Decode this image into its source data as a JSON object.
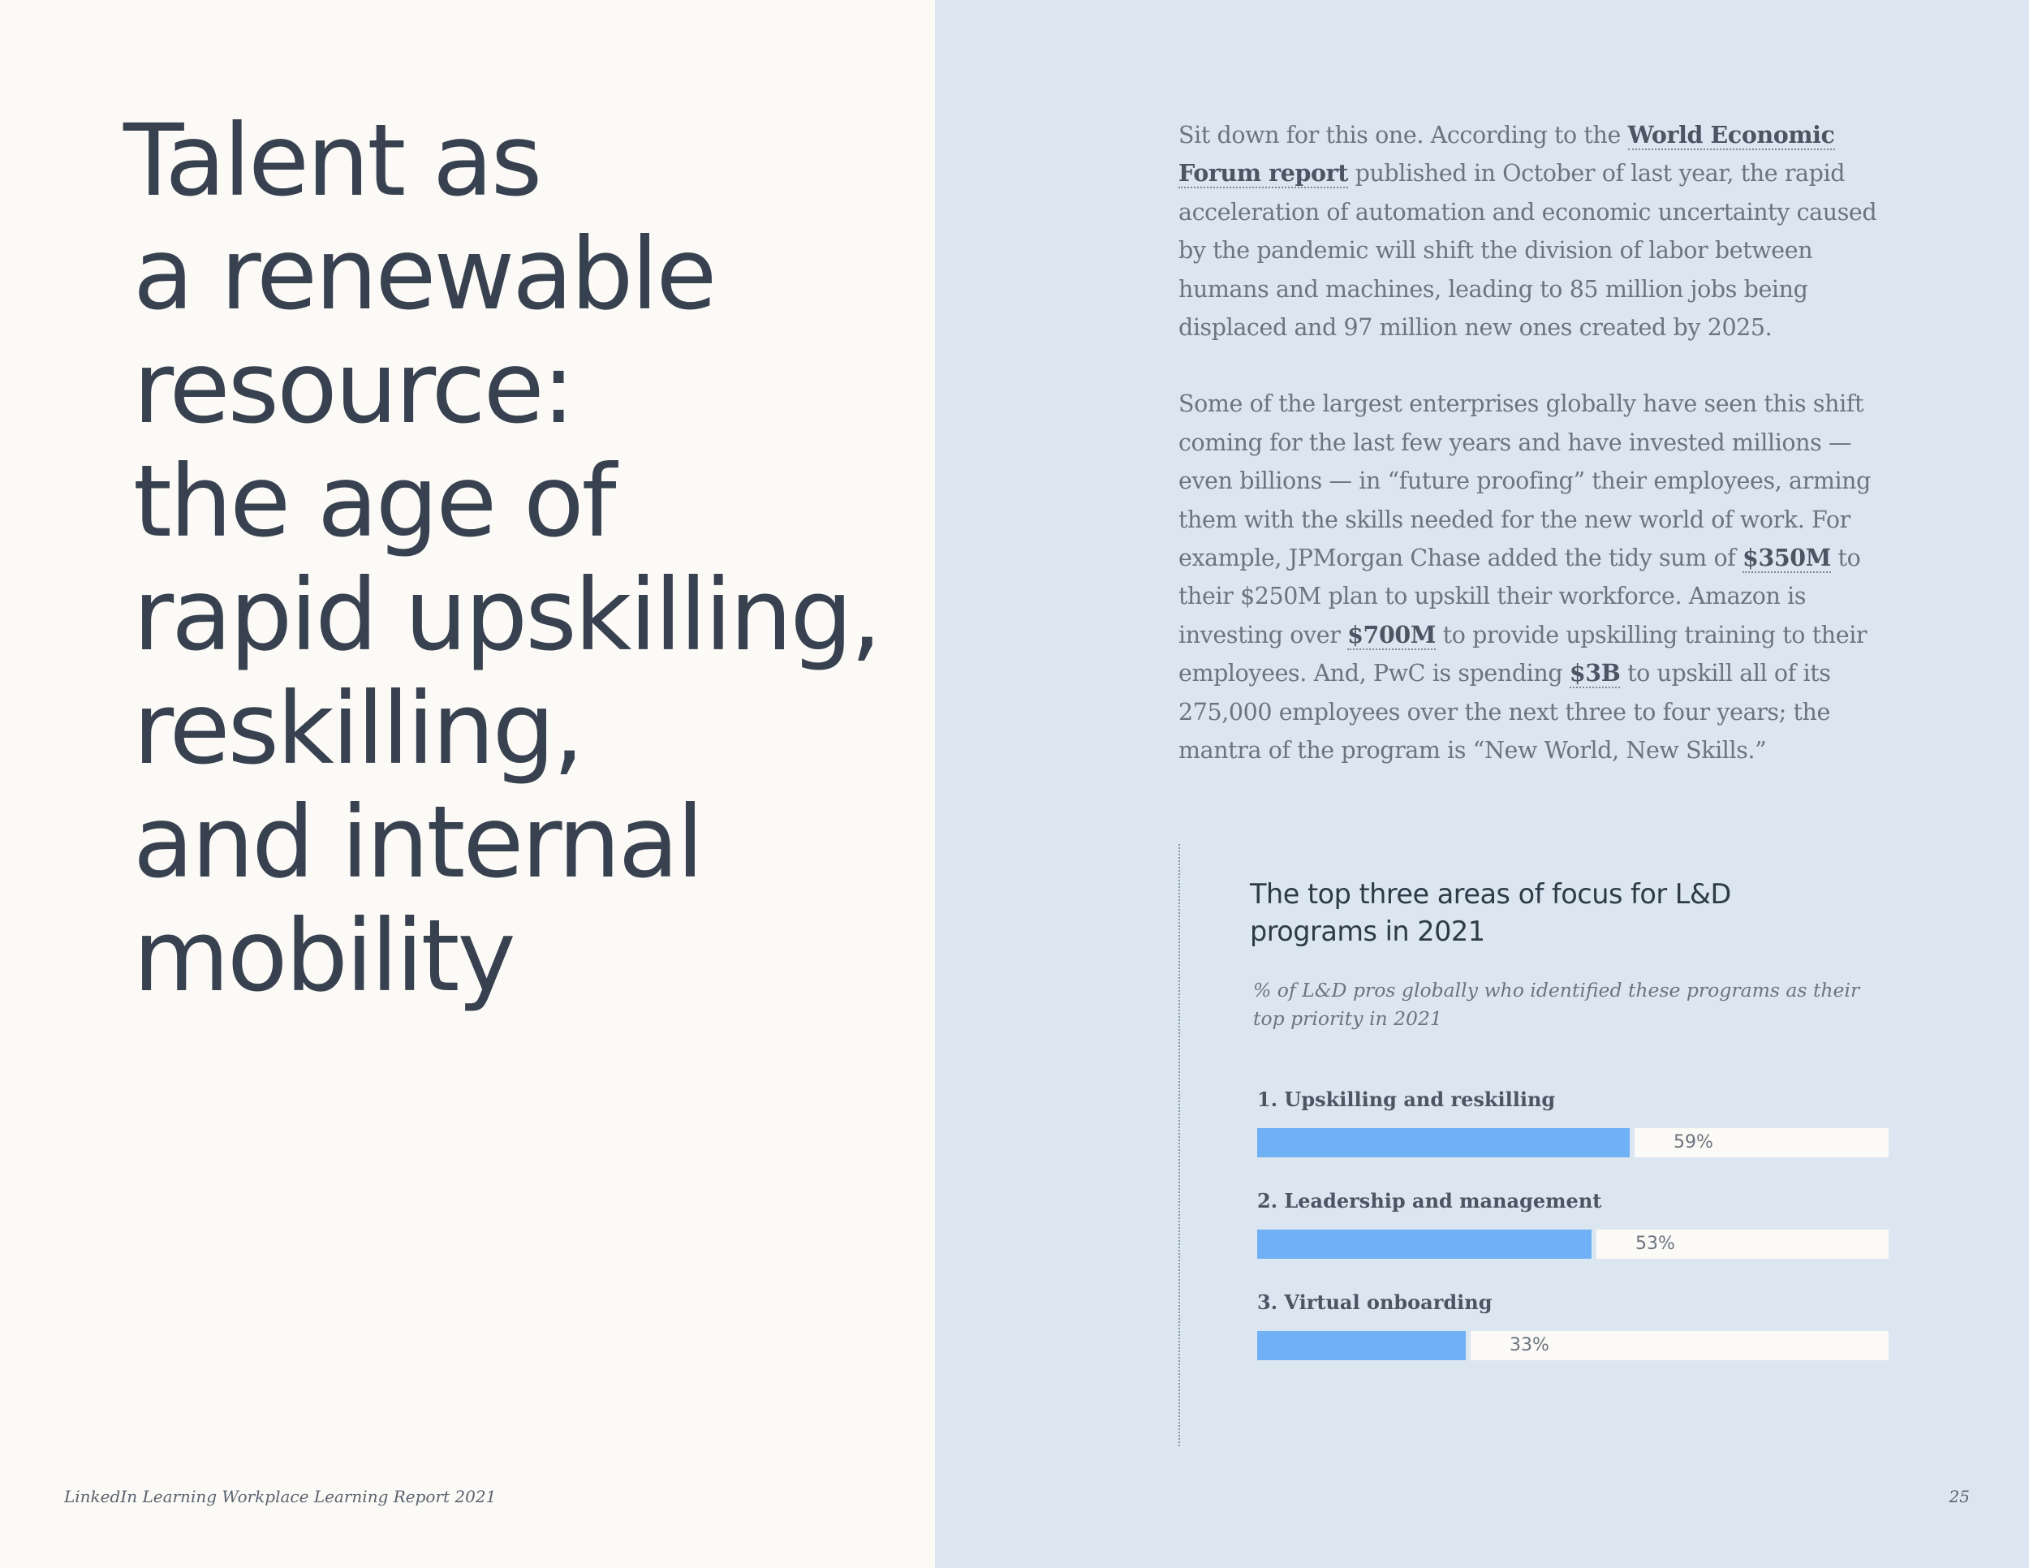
{
  "headline": {
    "lines": [
      "Talent as",
      "a renewable",
      "resource:",
      "the age of",
      "rapid upskilling,",
      "reskilling,",
      "and internal",
      "mobility"
    ]
  },
  "body": {
    "p1_a": "Sit down for this one. According to the ",
    "p1_link": "World Economic Forum report",
    "p1_b": " published in October of last year, the rapid acceleration of automation and economic uncertainty caused by the pandemic will shift the division of labor between humans and machines, leading to 85 million jobs being displaced and 97 million new ones created by 2025.",
    "p2_a": "Some of the largest enterprises globally have seen this shift coming for the last few years and have invested millions — even billions — in “future proofing” their employees, arming them with the skills needed for the new world of work. For example, JPMorgan Chase added the tidy sum of ",
    "p2_e1": "$350M",
    "p2_b": " to their $250M plan to upskill their workforce. Amazon is investing over ",
    "p2_e2": "$700M",
    "p2_c": " to provide upskilling training to their employees. And, PwC is spending ",
    "p2_e3": "$3B",
    "p2_d": " to upskill all of its 275,000 employees over the next three to four years; the mantra of the program is “New World, New Skills.”"
  },
  "chart_data": {
    "type": "bar",
    "title": "The top three areas of focus for L&D programs in 2021",
    "subtitle": "% of L&D pros globally who identified these programs as their top priority in 2021",
    "categories": [
      "1. Upskilling and reskilling",
      "2. Leadership and management",
      "3. Virtual onboarding"
    ],
    "values": [
      59,
      53,
      33
    ],
    "value_labels": [
      "59%",
      "53%",
      "33%"
    ],
    "unit": "%",
    "xlim": [
      0,
      100
    ],
    "orientation": "horizontal",
    "bar_color": "#70b1f5"
  },
  "footer": {
    "left": "LinkedIn Learning Workplace Learning Report 2021",
    "page_number": "25"
  },
  "colors": {
    "left_background": "#fcfaf6",
    "right_background": "#dce6f0",
    "headline_text": "#38414f",
    "bar_fill": "#70b1f5"
  }
}
